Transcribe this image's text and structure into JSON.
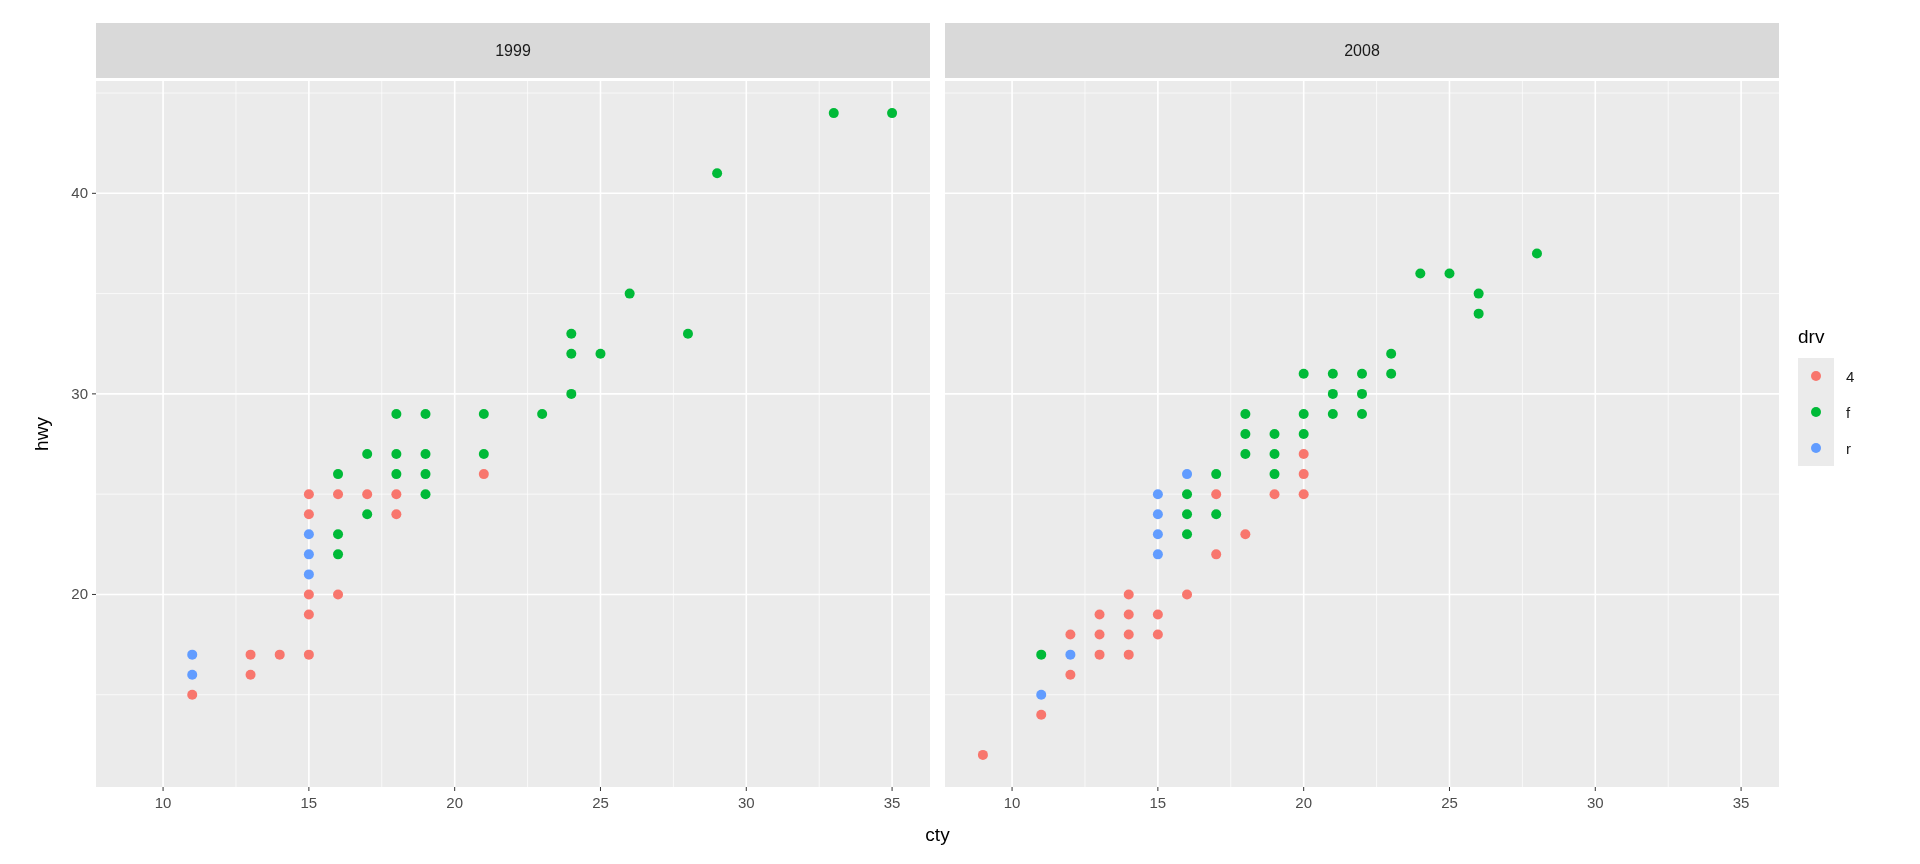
{
  "chart_data": [
    {
      "type": "scatter",
      "title": "1999",
      "xlabel": "cty",
      "ylabel": "hwy",
      "xlim": [
        7.7,
        36.3
      ],
      "ylim": [
        10.4,
        45.6
      ],
      "xticks": [
        10,
        15,
        20,
        25,
        30,
        35
      ],
      "yticks": [
        20,
        30,
        40
      ],
      "grid": true,
      "legend": false,
      "marker": "circle",
      "series": [
        {
          "color": "#f8766d",
          "x": [
            11,
            13,
            13,
            14,
            15,
            15,
            15,
            15,
            15,
            16,
            16,
            17,
            18,
            18,
            21
          ],
          "values": [
            15,
            17,
            16,
            17,
            25,
            24,
            20,
            19,
            17,
            25,
            20,
            25,
            25,
            24,
            26
          ]
        },
        {
          "color": "#00ba38",
          "x": [
            16,
            16,
            16,
            17,
            17,
            18,
            18,
            18,
            19,
            19,
            19,
            19,
            21,
            21,
            23,
            24,
            24,
            24,
            25,
            26,
            28,
            29,
            33,
            35
          ],
          "values": [
            26,
            23,
            22,
            27,
            24,
            29,
            27,
            26,
            29,
            27,
            26,
            25,
            29,
            27,
            29,
            33,
            32,
            30,
            32,
            35,
            33,
            41,
            44,
            44
          ]
        },
        {
          "color": "#619cff",
          "x": [
            11,
            11,
            15,
            15,
            15
          ],
          "values": [
            17,
            16,
            23,
            22,
            21
          ]
        }
      ]
    },
    {
      "type": "scatter",
      "title": "2008",
      "xlim": [
        7.7,
        36.3
      ],
      "ylim": [
        10.4,
        45.6
      ],
      "xticks": [
        10,
        15,
        20,
        25,
        30,
        35
      ],
      "yticks": [
        20,
        30,
        40
      ],
      "grid": true,
      "tick_labels": "x",
      "legend": "right",
      "legend_title": "drv",
      "marker": "circle",
      "series": [
        {
          "name": "4",
          "color": "#f8766d",
          "x": [
            9,
            11,
            12,
            12,
            13,
            13,
            13,
            14,
            14,
            14,
            14,
            15,
            15,
            16,
            17,
            17,
            18,
            19,
            20,
            20,
            20
          ],
          "values": [
            12,
            14,
            18,
            16,
            19,
            18,
            17,
            20,
            19,
            18,
            17,
            19,
            18,
            20,
            25,
            22,
            23,
            25,
            27,
            26,
            25
          ]
        },
        {
          "name": "f",
          "color": "#00ba38",
          "x": [
            11,
            16,
            16,
            16,
            17,
            17,
            18,
            18,
            18,
            19,
            19,
            19,
            20,
            20,
            20,
            21,
            21,
            21,
            22,
            22,
            22,
            23,
            23,
            24,
            25,
            26,
            26,
            28
          ],
          "values": [
            17,
            25,
            24,
            23,
            26,
            24,
            29,
            28,
            27,
            28,
            27,
            26,
            31,
            29,
            28,
            31,
            30,
            29,
            31,
            30,
            29,
            32,
            31,
            36,
            36,
            35,
            34,
            37
          ]
        },
        {
          "name": "r",
          "color": "#619cff",
          "x": [
            11,
            12,
            15,
            15,
            15,
            15,
            16
          ],
          "values": [
            15,
            17,
            25,
            24,
            23,
            22,
            26
          ]
        }
      ]
    }
  ]
}
